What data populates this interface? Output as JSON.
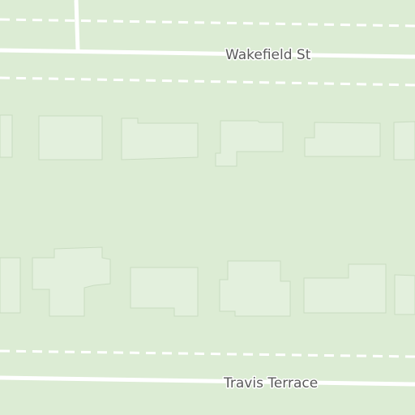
{
  "map": {
    "background_color": "#dcecd4",
    "building_color": "#e3f0dd",
    "street_color": "#ffffff",
    "label_color": "#5a5a5a"
  },
  "streets": {
    "wakefield": {
      "name": "Wakefield St"
    },
    "travis": {
      "name": "Travis Terrace"
    }
  }
}
